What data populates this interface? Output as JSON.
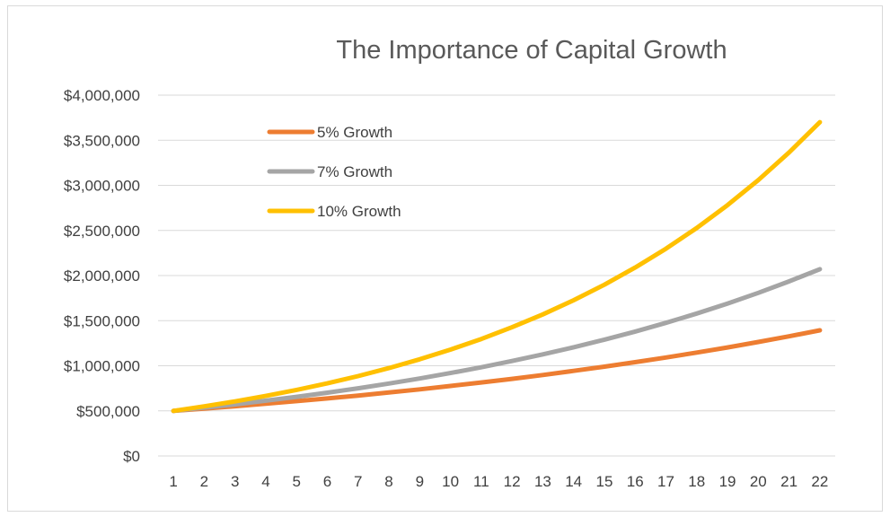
{
  "chart_data": {
    "type": "line",
    "title": "The Importance of Capital Growth",
    "xlabel": "",
    "ylabel": "",
    "x": [
      1,
      2,
      3,
      4,
      5,
      6,
      7,
      8,
      9,
      10,
      11,
      12,
      13,
      14,
      15,
      16,
      17,
      18,
      19,
      20,
      21,
      22
    ],
    "ylim": [
      0,
      4000000
    ],
    "y_ticks": [
      0,
      500000,
      1000000,
      1500000,
      2000000,
      2500000,
      3000000,
      3500000,
      4000000
    ],
    "y_tick_labels": [
      "$0",
      "$500,000",
      "$1,000,000",
      "$1,500,000",
      "$2,000,000",
      "$2,500,000",
      "$3,000,000",
      "$3,500,000",
      "$4,000,000"
    ],
    "grid": "horizontal",
    "legend_position": "top-left",
    "series": [
      {
        "name": "5% Growth",
        "color": "#ED7D31",
        "values": [
          500000,
          525000,
          551250,
          578813,
          607753,
          638141,
          670048,
          703550,
          738728,
          775664,
          814447,
          855170,
          897928,
          942825,
          989966,
          1039464,
          1091437,
          1146009,
          1203310,
          1263475,
          1326649,
          1392981
        ]
      },
      {
        "name": "7% Growth",
        "color": "#A5A5A5",
        "values": [
          500000,
          535000,
          572450,
          612522,
          655398,
          701276,
          750365,
          802891,
          859093,
          919230,
          983576,
          1052426,
          1126096,
          1204923,
          1289267,
          1379516,
          1476082,
          1579408,
          1689966,
          1808264,
          1934842,
          2070281
        ]
      },
      {
        "name": "10% Growth",
        "color": "#FFC000",
        "values": [
          500000,
          550000,
          605000,
          665500,
          732050,
          805255,
          885781,
          974359,
          1071794,
          1178974,
          1296871,
          1426558,
          1569214,
          1726136,
          1898749,
          2088624,
          2297486,
          2527235,
          2779959,
          3057955,
          3363750,
          3700125
        ]
      }
    ]
  }
}
